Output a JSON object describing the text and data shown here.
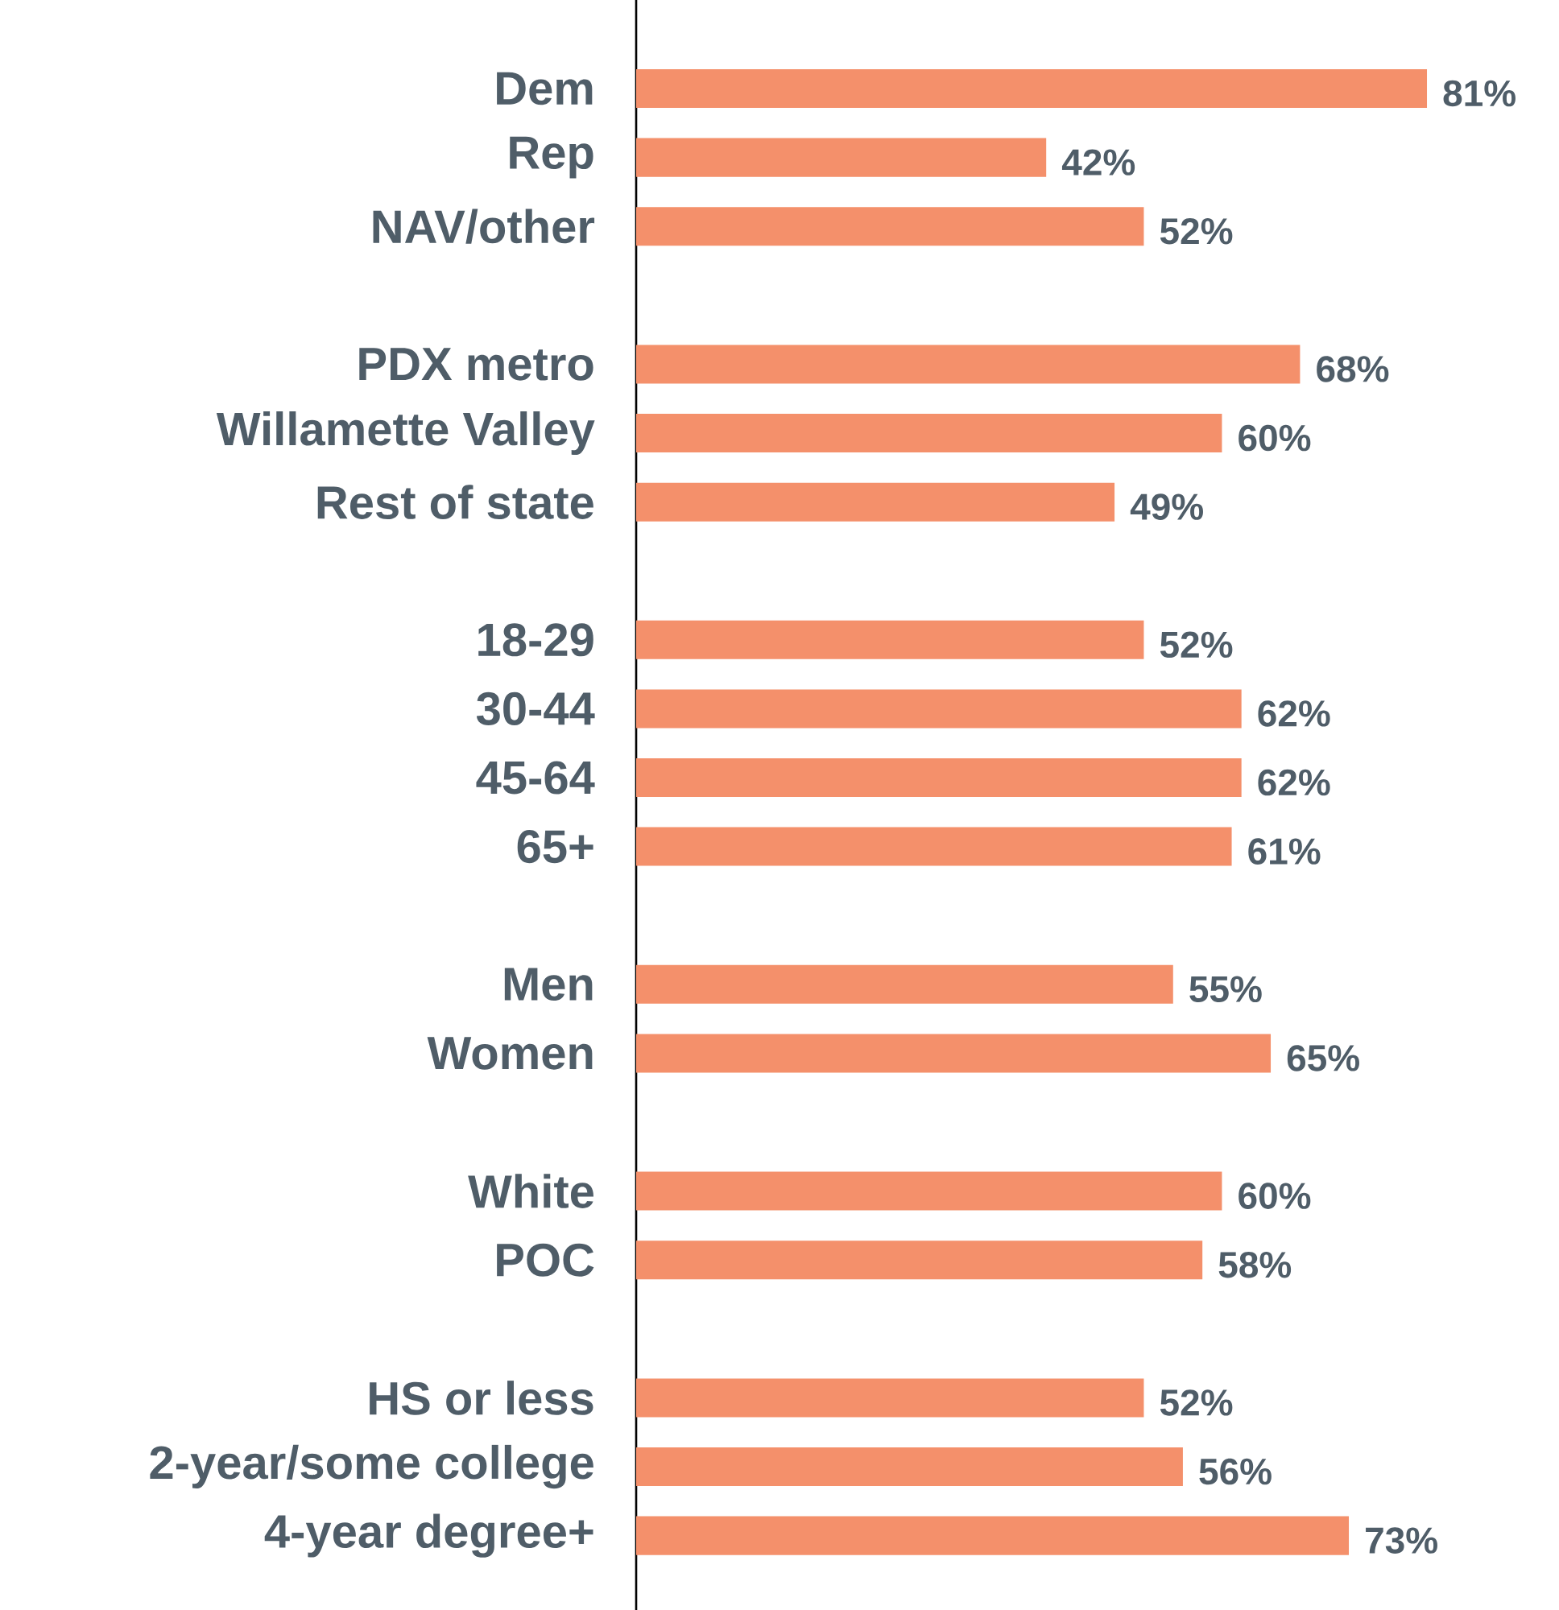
{
  "chart_data": {
    "type": "bar",
    "orientation": "horizontal",
    "color": "#f4906b",
    "categories": [
      "Dem",
      "Rep",
      "NAV/other",
      null,
      "PDX metro",
      "Willamette Valley",
      "Rest of state",
      null,
      "18-29",
      "30-44",
      "45-64",
      "65+",
      null,
      "Men",
      "Women",
      null,
      "White",
      "POC",
      null,
      "HS or less",
      "2-year/some college",
      "4-year degree+"
    ],
    "values": [
      81,
      42,
      52,
      null,
      68,
      60,
      49,
      null,
      52,
      62,
      62,
      61,
      null,
      55,
      65,
      null,
      60,
      58,
      null,
      52,
      56,
      73
    ],
    "value_labels": [
      "81%",
      "42%",
      "52%",
      null,
      "68%",
      "60%",
      "49%",
      null,
      "52%",
      "62%",
      "62%",
      "61%",
      null,
      "55%",
      "65%",
      null,
      "60%",
      "58%",
      null,
      "52%",
      "56%",
      "73%"
    ]
  }
}
